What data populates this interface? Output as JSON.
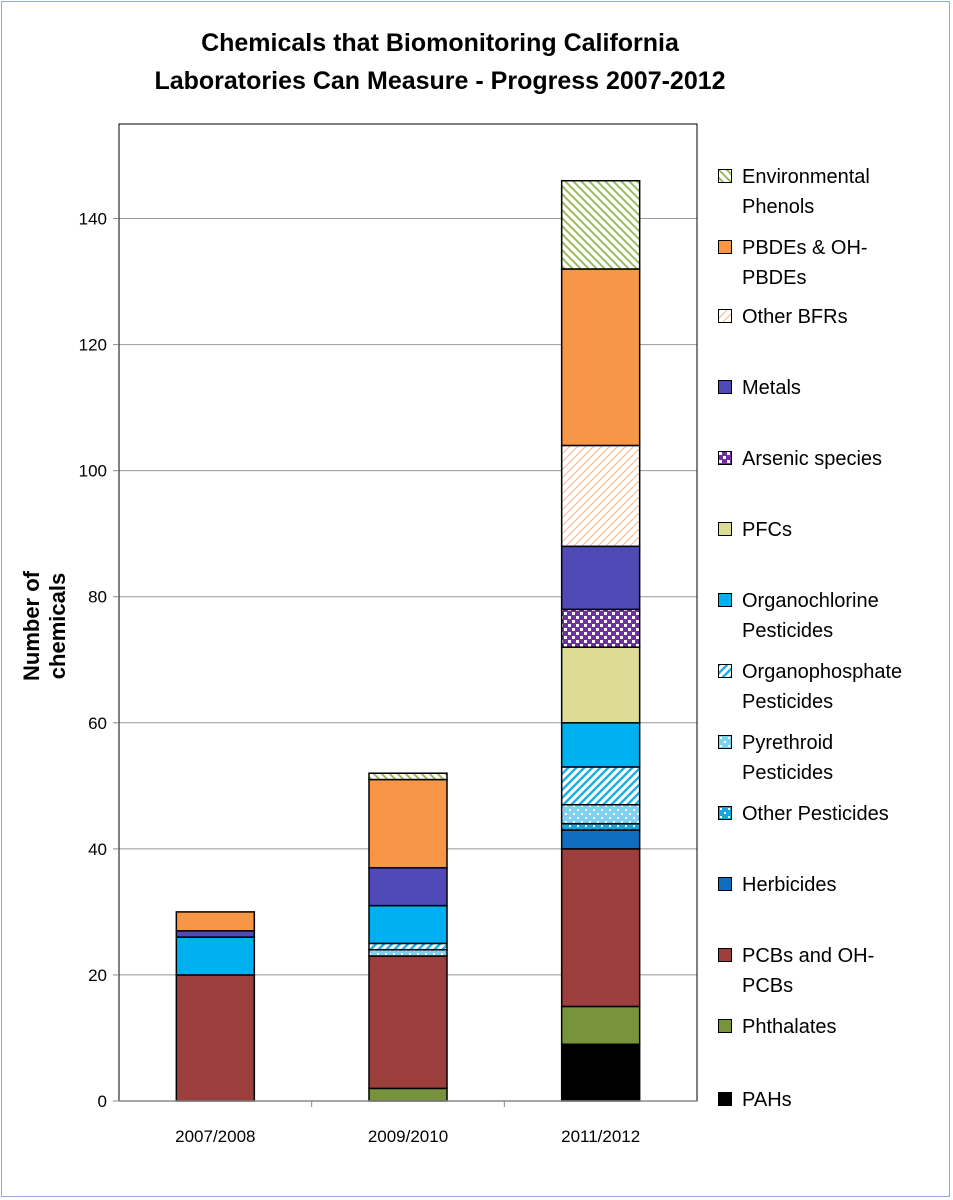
{
  "chart_data": {
    "type": "bar",
    "stacked": true,
    "title": "Chemicals that Biomonitoring California Laboratories Can Measure - Progress 2007-2012",
    "title_lines": [
      "Chemicals that Biomonitoring California",
      "Laboratories Can Measure - Progress 2007-2012"
    ],
    "xlabel": "",
    "ylabel": "Number of chemicals",
    "ylim": [
      0,
      155
    ],
    "yticks": [
      0,
      20,
      40,
      60,
      80,
      100,
      120,
      140
    ],
    "grid": true,
    "legend_position": "right",
    "categories": [
      "2007/2008",
      "2009/2010",
      "2011/2012"
    ],
    "series": [
      {
        "name": "PAHs",
        "legend": [
          "PAHs"
        ],
        "color": "#000000",
        "pattern": "solid",
        "values": [
          0,
          0,
          9
        ]
      },
      {
        "name": "Phthalates",
        "legend": [
          "Phthalates"
        ],
        "color": "#77933c",
        "pattern": "solid",
        "values": [
          0,
          2,
          6
        ]
      },
      {
        "name": "PCBs and OH-PCBs",
        "legend": [
          "PCBs and OH-",
          "PCBs"
        ],
        "color": "#9b3e3c",
        "pattern": "solid",
        "values": [
          20,
          21,
          25
        ]
      },
      {
        "name": "Herbicides",
        "legend": [
          "Herbicides"
        ],
        "color": "#0f6ebf",
        "pattern": "solid",
        "values": [
          0,
          0,
          3
        ]
      },
      {
        "name": "Other Pesticides",
        "legend": [
          "Other Pesticides"
        ],
        "color": "#19a5e0",
        "pattern": "dots",
        "values": [
          0,
          0,
          1
        ]
      },
      {
        "name": "Pyrethroid Pesticides",
        "legend": [
          "Pyrethroid",
          "Pesticides"
        ],
        "color": "#7fd1f2",
        "pattern": "dots",
        "values": [
          0,
          1,
          3
        ]
      },
      {
        "name": "Organophosphate Pesticides",
        "legend": [
          "Organophosphate",
          "Pesticides"
        ],
        "color": "#1eaee6",
        "pattern": "diag",
        "values": [
          0,
          1,
          6
        ]
      },
      {
        "name": "Organochlorine Pesticides",
        "legend": [
          "Organochlorine",
          "Pesticides"
        ],
        "color": "#00b0f0",
        "pattern": "solid",
        "values": [
          6,
          6,
          7
        ]
      },
      {
        "name": "PFCs",
        "legend": [
          "PFCs"
        ],
        "color": "#dcdc96",
        "pattern": "solid",
        "values": [
          0,
          0,
          12
        ]
      },
      {
        "name": "Arsenic species",
        "legend": [
          "Arsenic species"
        ],
        "color": "#7030a0",
        "pattern": "check",
        "values": [
          0,
          0,
          6
        ]
      },
      {
        "name": "Metals",
        "legend": [
          "Metals"
        ],
        "color": "#4f4ab5",
        "pattern": "solid",
        "values": [
          1,
          6,
          10
        ]
      },
      {
        "name": "Other BFRs",
        "legend": [
          "Other BFRs"
        ],
        "color": "#f5b68a",
        "pattern": "diag-thin",
        "values": [
          0,
          0,
          16
        ]
      },
      {
        "name": "PBDEs & OH-PBDEs",
        "legend": [
          "PBDEs & OH-",
          "PBDEs"
        ],
        "color": "#f79646",
        "pattern": "solid",
        "values": [
          3,
          14,
          28
        ]
      },
      {
        "name": "Environmental Phenols",
        "legend": [
          "Environmental",
          "Phenols"
        ],
        "color": "#9bbb59",
        "pattern": "diag-rev",
        "values": [
          0,
          1,
          14
        ]
      }
    ]
  }
}
